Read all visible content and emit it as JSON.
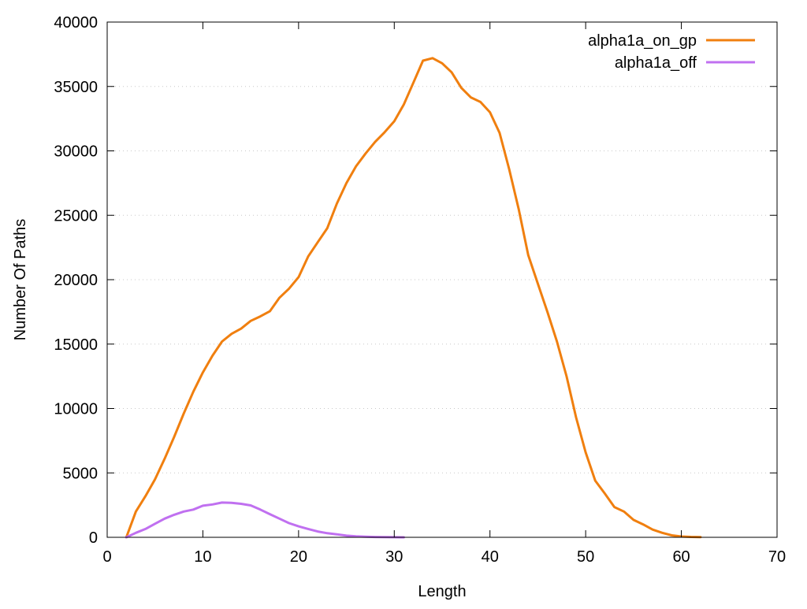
{
  "chart_data": {
    "type": "line",
    "xlabel": "Length",
    "ylabel": "Number Of Paths",
    "xlim": [
      0,
      70
    ],
    "ylim": [
      0,
      40000
    ],
    "xticks": [
      "0",
      "10",
      "20",
      "30",
      "40",
      "50",
      "60",
      "70"
    ],
    "yticks": [
      "0",
      "5000",
      "10000",
      "15000",
      "20000",
      "25000",
      "30000",
      "35000",
      "40000"
    ],
    "grid": "horizontal-dotted",
    "legend_position": "top-right",
    "series": [
      {
        "name": "alpha1a_on_gp",
        "color": "#f07f0f",
        "x": [
          2,
          3,
          4,
          5,
          6,
          7,
          8,
          9,
          10,
          11,
          12,
          13,
          14,
          15,
          16,
          17,
          18,
          19,
          20,
          21,
          22,
          23,
          24,
          25,
          26,
          27,
          28,
          29,
          30,
          31,
          32,
          33,
          34,
          35,
          36,
          37,
          38,
          39,
          40,
          41,
          42,
          43,
          44,
          45,
          46,
          47,
          48,
          49,
          50,
          51,
          52,
          53,
          54,
          55,
          56,
          57,
          58,
          59,
          60,
          61,
          62
        ],
        "y": [
          0,
          2000,
          3200,
          4500,
          6100,
          7800,
          9600,
          11300,
          12800,
          14100,
          15200,
          15800,
          16200,
          16800,
          17150,
          17550,
          18600,
          19300,
          20200,
          21800,
          22900,
          24000,
          25900,
          27500,
          28800,
          29800,
          30700,
          31450,
          32300,
          33600,
          35300,
          37000,
          37200,
          36800,
          36100,
          34900,
          34150,
          33800,
          33000,
          31400,
          28600,
          25500,
          21900,
          19700,
          17500,
          15200,
          12500,
          9300,
          6600,
          4400,
          3400,
          2350,
          2000,
          1350,
          1000,
          600,
          350,
          150,
          60,
          30,
          20
        ]
      },
      {
        "name": "alpha1a_off",
        "color": "#c070f0",
        "x": [
          2,
          3,
          4,
          5,
          6,
          7,
          8,
          9,
          10,
          11,
          12,
          13,
          14,
          15,
          16,
          17,
          18,
          19,
          20,
          21,
          22,
          23,
          24,
          25,
          26,
          27,
          28,
          29,
          30,
          31
        ],
        "y": [
          0,
          350,
          650,
          1050,
          1450,
          1750,
          2000,
          2150,
          2450,
          2550,
          2700,
          2680,
          2600,
          2480,
          2150,
          1800,
          1450,
          1100,
          850,
          650,
          450,
          320,
          230,
          130,
          80,
          50,
          25,
          15,
          5,
          0
        ]
      }
    ]
  }
}
